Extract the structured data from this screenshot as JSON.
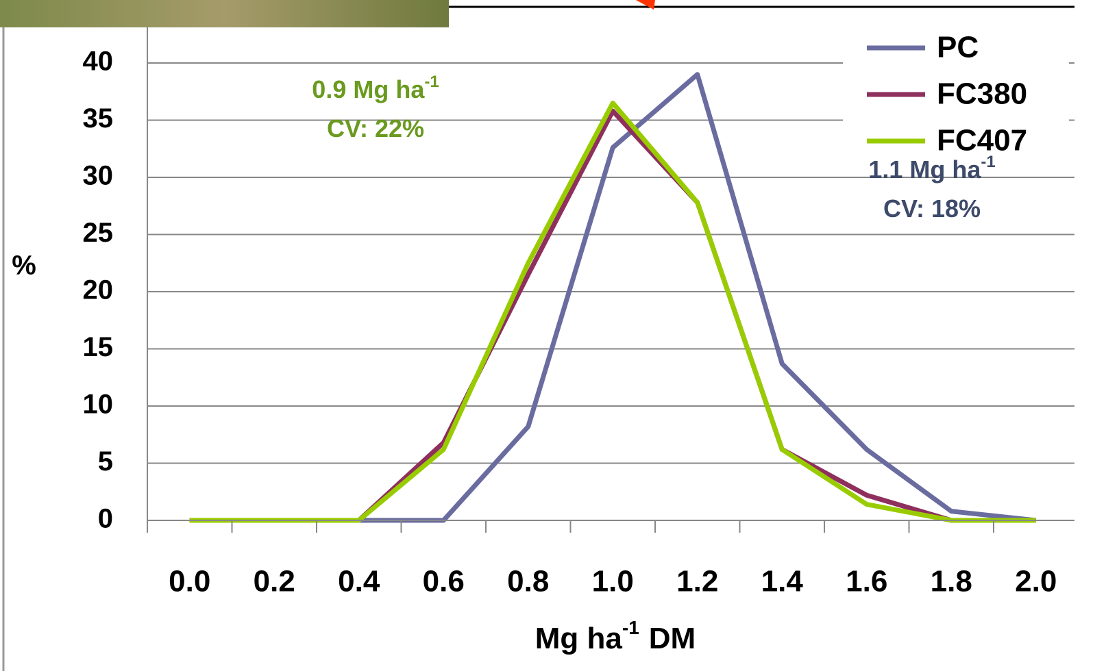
{
  "chart_data": {
    "type": "line",
    "ylabel": "%",
    "xlabel": {
      "base": "Mg ha",
      "sup": "-1",
      "after": "DM"
    },
    "categories": [
      "0.0",
      "0.2",
      "0.4",
      "0.6",
      "0.8",
      "1.0",
      "1.2",
      "1.4",
      "1.6",
      "1.8",
      "2.0"
    ],
    "series": [
      {
        "name": "PC",
        "color": "#6a6ca0",
        "values": [
          0,
          0,
          0,
          0,
          8.2,
          32.6,
          39,
          13.7,
          6.2,
          0.8,
          0
        ]
      },
      {
        "name": "FC380",
        "color": "#8e2f5e",
        "values": [
          0,
          0,
          0,
          6.8,
          21.5,
          35.8,
          27.8,
          6.2,
          2.2,
          0,
          0
        ]
      },
      {
        "name": "FC407",
        "color": "#99cc00",
        "values": [
          0,
          0,
          0,
          6.2,
          22.5,
          36.5,
          27.8,
          6.2,
          1.4,
          0,
          0
        ]
      }
    ],
    "ylim": [
      0,
      40
    ],
    "yticks": [
      0,
      5,
      10,
      15,
      20,
      25,
      30,
      35,
      40
    ],
    "grid": true,
    "legend": "top-right",
    "annotations": [
      {
        "lines": [
          {
            "base": "0.9 Mg ha",
            "sup": "-1"
          },
          {
            "base": "CV: 22%"
          }
        ],
        "color": "#6a9a1f"
      },
      {
        "lines": [
          {
            "base": "1.1 Mg ha",
            "sup": "-1"
          },
          {
            "base": "CV: 18%"
          }
        ],
        "color": "#3d4a6a"
      }
    ]
  }
}
